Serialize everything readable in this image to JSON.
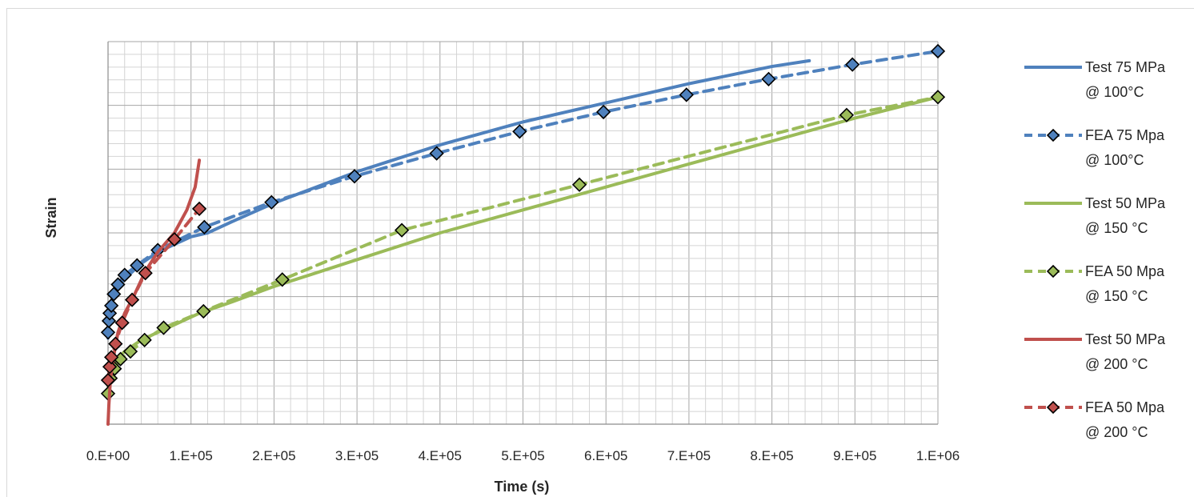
{
  "chart_data": {
    "type": "line",
    "title": "",
    "xlabel": "Time (s)",
    "ylabel": "Strain",
    "xlim": [
      0,
      1000000
    ],
    "ylim": [
      0,
      1
    ],
    "x_tick_labels": [
      "0.E+00",
      "1.E+05",
      "2.E+05",
      "3.E+05",
      "4.E+05",
      "5.E+05",
      "6.E+05",
      "7.E+05",
      "8.E+05",
      "9.E+05",
      "1.E+06"
    ],
    "y_ticks_labeled": false,
    "grid": true,
    "legend_position": "right",
    "series": [
      {
        "name": "Test 75 MPa @ 100°C",
        "color": "#4f81bd",
        "dash": "solid",
        "marker": "none",
        "points": [
          [
            0,
            0.225
          ],
          [
            500,
            0.27
          ],
          [
            2000,
            0.3
          ],
          [
            5000,
            0.33
          ],
          [
            10000,
            0.35
          ],
          [
            20000,
            0.38
          ],
          [
            40000,
            0.42
          ],
          [
            60000,
            0.45
          ],
          [
            80000,
            0.47
          ],
          [
            100000,
            0.49
          ],
          [
            120000,
            0.5
          ],
          [
            150000,
            0.53
          ],
          [
            200000,
            0.578
          ],
          [
            300000,
            0.66
          ],
          [
            400000,
            0.73
          ],
          [
            500000,
            0.79
          ],
          [
            600000,
            0.84
          ],
          [
            700000,
            0.89
          ],
          [
            800000,
            0.935
          ],
          [
            845000,
            0.95
          ]
        ]
      },
      {
        "name": "FEA 75 Mpa @ 100°C",
        "color": "#4f81bd",
        "dash": "dashed",
        "marker": "diamond",
        "points": [
          [
            0,
            0.24
          ],
          [
            1000,
            0.27
          ],
          [
            2000,
            0.29
          ],
          [
            4000,
            0.31
          ],
          [
            7000,
            0.34
          ],
          [
            12000,
            0.365
          ],
          [
            20000,
            0.39
          ],
          [
            35000,
            0.415
          ],
          [
            60000,
            0.455
          ],
          [
            116000,
            0.515
          ],
          [
            197000,
            0.58
          ],
          [
            297000,
            0.648
          ],
          [
            396000,
            0.708
          ],
          [
            496000,
            0.765
          ],
          [
            597000,
            0.816
          ],
          [
            697000,
            0.861
          ],
          [
            796000,
            0.902
          ],
          [
            897000,
            0.94
          ],
          [
            1000000,
            0.975
          ]
        ]
      },
      {
        "name": "Test 50 MPa @ 150 °C",
        "color": "#9bbb59",
        "dash": "solid",
        "marker": "none",
        "points": [
          [
            0,
            0.1
          ],
          [
            5000,
            0.15
          ],
          [
            10000,
            0.17
          ],
          [
            20000,
            0.19
          ],
          [
            40000,
            0.22
          ],
          [
            70000,
            0.25
          ],
          [
            110000,
            0.29
          ],
          [
            150000,
            0.32
          ],
          [
            200000,
            0.36
          ],
          [
            300000,
            0.43
          ],
          [
            400000,
            0.5
          ],
          [
            500000,
            0.56
          ],
          [
            600000,
            0.62
          ],
          [
            700000,
            0.68
          ],
          [
            800000,
            0.74
          ],
          [
            900000,
            0.8
          ],
          [
            1000000,
            0.855
          ]
        ]
      },
      {
        "name": "FEA 50 Mpa @ 150 °C",
        "color": "#9bbb59",
        "dash": "dashed",
        "marker": "diamond",
        "points": [
          [
            0,
            0.08
          ],
          [
            3000,
            0.12
          ],
          [
            8000,
            0.145
          ],
          [
            15000,
            0.17
          ],
          [
            27000,
            0.19
          ],
          [
            44000,
            0.22
          ],
          [
            67000,
            0.252
          ],
          [
            115000,
            0.295
          ],
          [
            210000,
            0.378
          ],
          [
            354000,
            0.507
          ],
          [
            568000,
            0.626
          ],
          [
            890000,
            0.808
          ],
          [
            1000000,
            0.855
          ]
        ]
      },
      {
        "name": "Test 50 MPa @ 200 °C",
        "color": "#c0504d",
        "dash": "solid",
        "marker": "none",
        "points": [
          [
            0,
            0.0
          ],
          [
            1000,
            0.05
          ],
          [
            3000,
            0.12
          ],
          [
            7000,
            0.18
          ],
          [
            12000,
            0.24
          ],
          [
            20000,
            0.29
          ],
          [
            30000,
            0.33
          ],
          [
            45000,
            0.4
          ],
          [
            60000,
            0.45
          ],
          [
            80000,
            0.5
          ],
          [
            95000,
            0.56
          ],
          [
            105000,
            0.62
          ],
          [
            110000,
            0.69
          ]
        ]
      },
      {
        "name": "FEA 50 Mpa @ 200 °C",
        "color": "#c0504d",
        "dash": "dashed",
        "marker": "diamond",
        "points": [
          [
            0,
            0.115
          ],
          [
            2000,
            0.15
          ],
          [
            4000,
            0.175
          ],
          [
            9000,
            0.21
          ],
          [
            17000,
            0.265
          ],
          [
            29000,
            0.325
          ],
          [
            45000,
            0.395
          ],
          [
            80000,
            0.483
          ],
          [
            110000,
            0.563
          ]
        ]
      }
    ],
    "legend": [
      {
        "line1": "Test 75 MPa",
        "line2": "@ 100°C"
      },
      {
        "line1": "FEA 75 Mpa",
        "line2": "@ 100°C"
      },
      {
        "line1": "Test 50 MPa",
        "line2": "@ 150 °C"
      },
      {
        "line1": "FEA 50 Mpa",
        "line2": "@ 150 °C"
      },
      {
        "line1": "Test 50 MPa",
        "line2": "@ 200 °C"
      },
      {
        "line1": "FEA 50 Mpa",
        "line2": "@ 200 °C"
      }
    ]
  }
}
